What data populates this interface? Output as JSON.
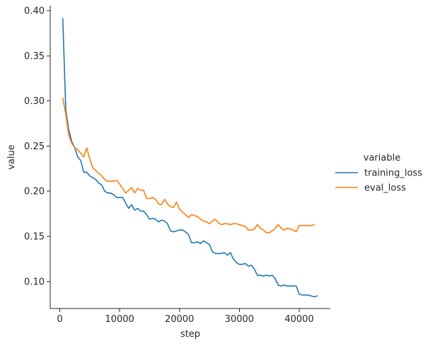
{
  "chart_data": {
    "type": "line",
    "xlabel": "step",
    "ylabel": "value",
    "xlim": [
      -1600,
      45200
    ],
    "ylim": [
      0.0701,
      0.4055
    ],
    "xticks": [
      0,
      10000,
      20000,
      30000,
      40000
    ],
    "yticks": [
      0.1,
      0.15,
      0.2,
      0.25,
      0.3,
      0.35,
      0.4
    ],
    "x_tick_labels": [
      "0",
      "10000",
      "20000",
      "30000",
      "40000"
    ],
    "y_tick_labels": [
      "0.10",
      "0.15",
      "0.20",
      "0.25",
      "0.30",
      "0.35",
      "0.40"
    ],
    "grid": false,
    "legend": {
      "title": "variable",
      "placement": "right"
    },
    "series": [
      {
        "name": "training_loss",
        "color": "#1f77b4",
        "points": [
          [
            500,
            0.391
          ],
          [
            1000,
            0.29
          ],
          [
            1500,
            0.268
          ],
          [
            2000,
            0.255
          ],
          [
            2500,
            0.248
          ],
          [
            3000,
            0.238
          ],
          [
            3500,
            0.234
          ],
          [
            4000,
            0.221
          ],
          [
            4500,
            0.221
          ],
          [
            5000,
            0.217
          ],
          [
            5500,
            0.215
          ],
          [
            6000,
            0.213
          ],
          [
            6500,
            0.209
          ],
          [
            7000,
            0.207
          ],
          [
            7500,
            0.2
          ],
          [
            8000,
            0.198
          ],
          [
            8500,
            0.198
          ],
          [
            9000,
            0.196
          ],
          [
            9500,
            0.193
          ],
          [
            10000,
            0.193
          ],
          [
            10500,
            0.193
          ],
          [
            11000,
            0.187
          ],
          [
            11500,
            0.181
          ],
          [
            12000,
            0.185
          ],
          [
            12500,
            0.179
          ],
          [
            13000,
            0.181
          ],
          [
            13500,
            0.178
          ],
          [
            14000,
            0.178
          ],
          [
            14500,
            0.174
          ],
          [
            15000,
            0.169
          ],
          [
            15500,
            0.17
          ],
          [
            16000,
            0.169
          ],
          [
            16500,
            0.166
          ],
          [
            17000,
            0.168
          ],
          [
            17500,
            0.167
          ],
          [
            18000,
            0.164
          ],
          [
            18500,
            0.156
          ],
          [
            19000,
            0.155
          ],
          [
            19500,
            0.156
          ],
          [
            20000,
            0.157
          ],
          [
            20500,
            0.157
          ],
          [
            21000,
            0.155
          ],
          [
            21500,
            0.152
          ],
          [
            22000,
            0.143
          ],
          [
            22500,
            0.143
          ],
          [
            23000,
            0.144
          ],
          [
            23500,
            0.142
          ],
          [
            24000,
            0.145
          ],
          [
            24500,
            0.143
          ],
          [
            25000,
            0.141
          ],
          [
            25500,
            0.133
          ],
          [
            26000,
            0.131
          ],
          [
            26500,
            0.131
          ],
          [
            27000,
            0.131
          ],
          [
            27500,
            0.132
          ],
          [
            28000,
            0.129
          ],
          [
            28500,
            0.132
          ],
          [
            29000,
            0.125
          ],
          [
            29500,
            0.121
          ],
          [
            30000,
            0.119
          ],
          [
            30500,
            0.119
          ],
          [
            31000,
            0.12
          ],
          [
            31500,
            0.117
          ],
          [
            32000,
            0.118
          ],
          [
            32500,
            0.114
          ],
          [
            33000,
            0.107
          ],
          [
            33500,
            0.107
          ],
          [
            34000,
            0.106
          ],
          [
            34500,
            0.107
          ],
          [
            35000,
            0.106
          ],
          [
            35500,
            0.107
          ],
          [
            36000,
            0.103
          ],
          [
            36500,
            0.096
          ],
          [
            37000,
            0.095
          ],
          [
            37500,
            0.096
          ],
          [
            38000,
            0.095
          ],
          [
            38500,
            0.095
          ],
          [
            39000,
            0.095
          ],
          [
            39500,
            0.095
          ],
          [
            40000,
            0.086
          ],
          [
            40500,
            0.085
          ],
          [
            41000,
            0.085
          ],
          [
            41500,
            0.085
          ],
          [
            42000,
            0.084
          ],
          [
            42500,
            0.083
          ],
          [
            43000,
            0.084
          ]
        ]
      },
      {
        "name": "eval_loss",
        "color": "#ff7f0e",
        "points": [
          [
            500,
            0.303
          ],
          [
            1000,
            0.285
          ],
          [
            1500,
            0.262
          ],
          [
            2000,
            0.253
          ],
          [
            2500,
            0.248
          ],
          [
            3000,
            0.246
          ],
          [
            3500,
            0.242
          ],
          [
            4000,
            0.238
          ],
          [
            4500,
            0.248
          ],
          [
            5000,
            0.236
          ],
          [
            5500,
            0.226
          ],
          [
            6000,
            0.223
          ],
          [
            6500,
            0.22
          ],
          [
            7000,
            0.217
          ],
          [
            7500,
            0.213
          ],
          [
            8000,
            0.211
          ],
          [
            8500,
            0.211
          ],
          [
            9000,
            0.211
          ],
          [
            9500,
            0.212
          ],
          [
            10000,
            0.208
          ],
          [
            10500,
            0.203
          ],
          [
            11000,
            0.198
          ],
          [
            11500,
            0.201
          ],
          [
            12000,
            0.204
          ],
          [
            12500,
            0.198
          ],
          [
            13000,
            0.203
          ],
          [
            13500,
            0.201
          ],
          [
            14000,
            0.201
          ],
          [
            14500,
            0.192
          ],
          [
            15000,
            0.192
          ],
          [
            15500,
            0.193
          ],
          [
            16000,
            0.191
          ],
          [
            16500,
            0.186
          ],
          [
            17000,
            0.185
          ],
          [
            17500,
            0.191
          ],
          [
            18000,
            0.186
          ],
          [
            18500,
            0.183
          ],
          [
            19000,
            0.182
          ],
          [
            19500,
            0.188
          ],
          [
            20000,
            0.18
          ],
          [
            20500,
            0.177
          ],
          [
            21000,
            0.174
          ],
          [
            21500,
            0.171
          ],
          [
            22000,
            0.174
          ],
          [
            22500,
            0.173
          ],
          [
            23000,
            0.172
          ],
          [
            23500,
            0.169
          ],
          [
            24000,
            0.167
          ],
          [
            24500,
            0.166
          ],
          [
            25000,
            0.164
          ],
          [
            25500,
            0.167
          ],
          [
            26000,
            0.169
          ],
          [
            26500,
            0.165
          ],
          [
            27000,
            0.163
          ],
          [
            27500,
            0.164
          ],
          [
            28000,
            0.164
          ],
          [
            28500,
            0.163
          ],
          [
            29000,
            0.164
          ],
          [
            29500,
            0.164
          ],
          [
            30000,
            0.163
          ],
          [
            30500,
            0.162
          ],
          [
            31000,
            0.161
          ],
          [
            31500,
            0.157
          ],
          [
            32000,
            0.157
          ],
          [
            32500,
            0.158
          ],
          [
            33000,
            0.163
          ],
          [
            33500,
            0.159
          ],
          [
            34000,
            0.157
          ],
          [
            34500,
            0.154
          ],
          [
            35000,
            0.154
          ],
          [
            35500,
            0.156
          ],
          [
            36000,
            0.159
          ],
          [
            36500,
            0.163
          ],
          [
            37000,
            0.159
          ],
          [
            37500,
            0.157
          ],
          [
            38000,
            0.159
          ],
          [
            38500,
            0.158
          ],
          [
            39000,
            0.157
          ],
          [
            39500,
            0.155
          ],
          [
            40000,
            0.162
          ],
          [
            40500,
            0.162
          ],
          [
            41000,
            0.162
          ],
          [
            41500,
            0.162
          ],
          [
            42000,
            0.162
          ],
          [
            42500,
            0.163
          ]
        ]
      }
    ]
  }
}
